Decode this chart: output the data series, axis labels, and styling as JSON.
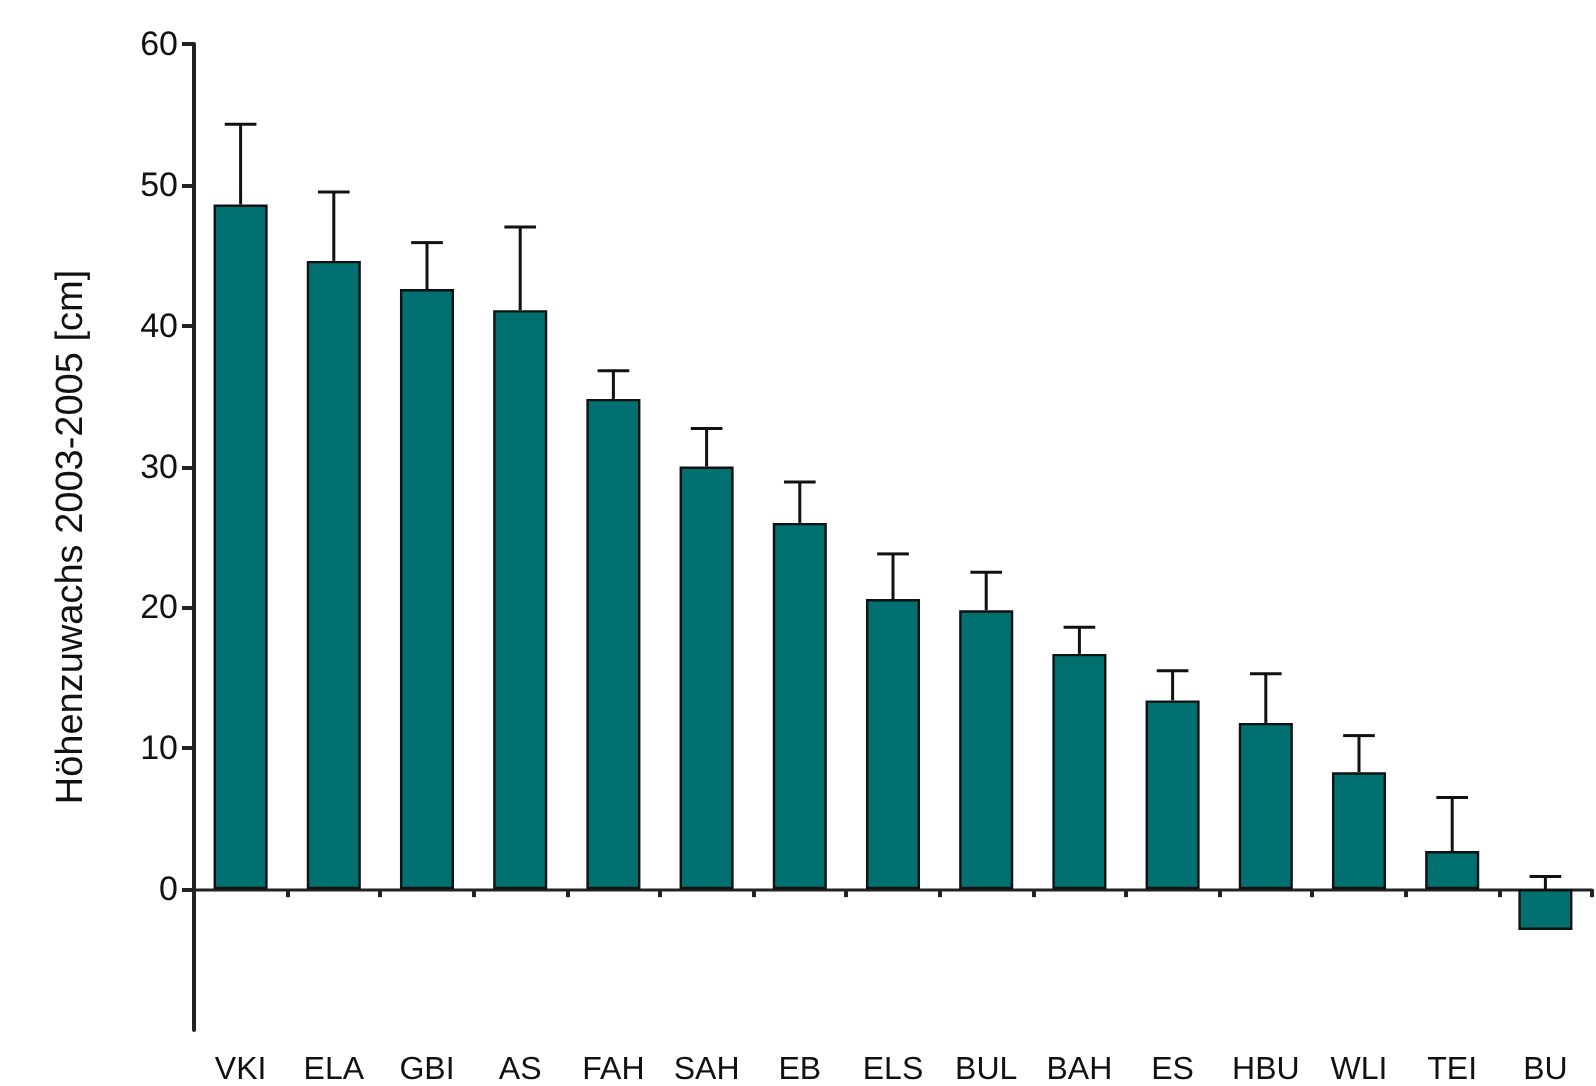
{
  "chart_data": {
    "type": "bar",
    "ylabel": "Höhenzuwachs 2003-2005 [cm]",
    "categories": [
      "VKI",
      "ELA",
      "GBI",
      "AS",
      "FAH",
      "SAH",
      "EB",
      "ELS",
      "BUL",
      "BAH",
      "ES",
      "HBU",
      "WLI",
      "TEI",
      "BU"
    ],
    "values": [
      48.6,
      44.6,
      42.6,
      41.1,
      34.8,
      30.0,
      26.0,
      20.6,
      19.8,
      16.7,
      13.4,
      11.8,
      8.3,
      2.7,
      -2.9
    ],
    "errors": [
      [
        48.6,
        54.3
      ],
      [
        44.6,
        49.5
      ],
      [
        42.6,
        45.9
      ],
      [
        41.1,
        47.0
      ],
      [
        34.8,
        36.8
      ],
      [
        30.0,
        32.7
      ],
      [
        26.0,
        28.9
      ],
      [
        20.6,
        23.8
      ],
      [
        19.8,
        22.5
      ],
      [
        16.7,
        18.6
      ],
      [
        13.4,
        15.5
      ],
      [
        11.8,
        15.3
      ],
      [
        8.3,
        10.9
      ],
      [
        2.7,
        6.5
      ],
      [
        -2.9,
        0.9
      ]
    ],
    "color": "#007070",
    "ylim": [
      -10,
      60
    ],
    "yticks": [
      0,
      10,
      20,
      30,
      40,
      50,
      60
    ]
  }
}
